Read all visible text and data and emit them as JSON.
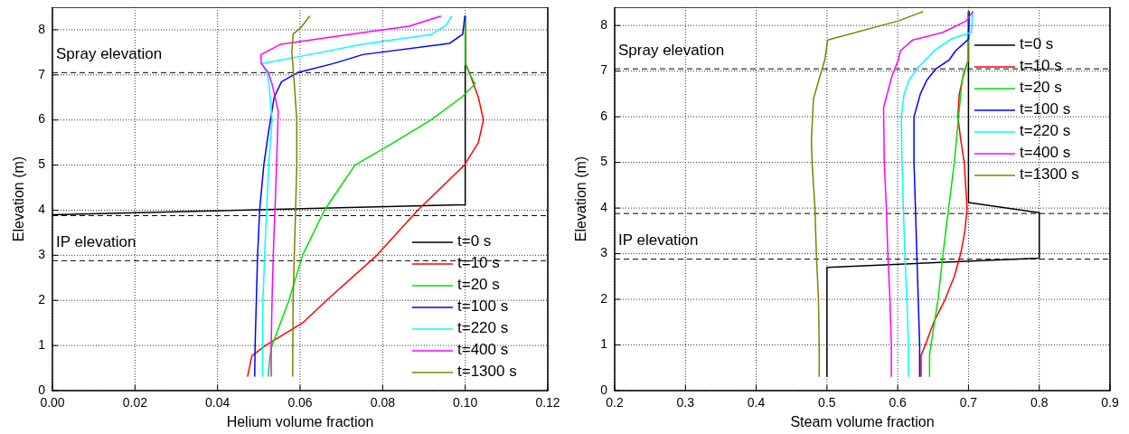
{
  "chart_data": [
    {
      "type": "line",
      "xlabel": "Helium volume fraction",
      "ylabel": "Elevation (m)",
      "xlim": [
        0,
        0.12
      ],
      "ylim": [
        0,
        8.5
      ],
      "xticks": [
        {
          "value": 0,
          "label": "0.00"
        },
        {
          "value": 0.02,
          "label": "0.02"
        },
        {
          "value": 0.04,
          "label": "0.04"
        },
        {
          "value": 0.06,
          "label": "0.06"
        },
        {
          "value": 0.08,
          "label": "0.08"
        },
        {
          "value": 0.1,
          "label": "0.10"
        },
        {
          "value": 0.12,
          "label": "0.12"
        }
      ],
      "yticks": [
        0,
        1,
        2,
        3,
        4,
        5,
        6,
        7,
        8
      ],
      "grid": true,
      "legend": "bottom right",
      "line_style": "solid",
      "ref_lines": [
        {
          "axis": "y",
          "value": 7.05,
          "line_style": "dashed",
          "color": "#000000",
          "label": "Spray elevation"
        },
        {
          "axis": "y",
          "value": 3.88,
          "line_style": "dashed",
          "color": "#000000"
        },
        {
          "axis": "y",
          "value": 2.88,
          "line_style": "dashed",
          "color": "#000000",
          "label": "IP elevation"
        }
      ],
      "series": [
        {
          "name": "t=0 s",
          "color": "#000000",
          "x": [
            0,
            0.1,
            0.1
          ],
          "values": [
            3.9,
            4.12,
            8.3
          ]
        },
        {
          "name": "t=10 s",
          "color": "#ff0000",
          "x": [
            0.0473,
            0.0483,
            0.0516,
            0.0606,
            0.0664,
            0.0786,
            0.0885,
            0.0998,
            0.1032,
            0.1044,
            0.1032,
            0.1012,
            0.1001,
            0.1
          ],
          "values": [
            0.32,
            0.77,
            1.0,
            1.5,
            2,
            3,
            4,
            5,
            5.5,
            6,
            6.5,
            7,
            7.25,
            8.3
          ]
        },
        {
          "name": "t=20 s",
          "color": "#00e000",
          "x": [
            0.0523,
            0.0527,
            0.0532,
            0.0573,
            0.0606,
            0.0659,
            0.0696,
            0.0733,
            0.0827,
            0.0917,
            0.0991,
            0.1024,
            0.1012,
            0.1,
            0.1
          ],
          "values": [
            0.32,
            0.77,
            1,
            2,
            3,
            4,
            4.5,
            5,
            5.5,
            6,
            6.5,
            6.8,
            7,
            7.25,
            8.3
          ]
        },
        {
          "name": "t=100 s",
          "color": "#0000ff",
          "x": [
            0.049,
            0.0491,
            0.0494,
            0.0497,
            0.0502,
            0.0512,
            0.0523,
            0.0537,
            0.0555,
            0.0594,
            0.068,
            0.0752,
            0.0962,
            0.0994,
            0.0999
          ],
          "values": [
            0.32,
            1,
            2,
            3,
            4,
            5,
            5.7,
            6.5,
            6.85,
            7.05,
            7.25,
            7.45,
            7.7,
            7.9,
            8.3
          ]
        },
        {
          "name": "t=220 s",
          "color": "#00ffff",
          "x": [
            0.0509,
            0.0509,
            0.051,
            0.0514,
            0.0519,
            0.0524,
            0.0532,
            0.0524,
            0.0519,
            0.0508,
            0.0623,
            0.075,
            0.0919,
            0.0954,
            0.0967
          ],
          "values": [
            0.32,
            1,
            2,
            3,
            4,
            5,
            6,
            6.85,
            7.05,
            7.25,
            7.45,
            7.68,
            7.9,
            8.1,
            8.3
          ]
        },
        {
          "name": "t=400 s",
          "color": "#ff00ff",
          "x": [
            0.053,
            0.053,
            0.0532,
            0.0535,
            0.0539,
            0.0543,
            0.0547,
            0.0532,
            0.0523,
            0.0506,
            0.0505,
            0.0553,
            0.0721,
            0.0864,
            0.094
          ],
          "values": [
            0.32,
            1,
            2,
            3,
            4,
            5,
            6.2,
            6.8,
            7.05,
            7.25,
            7.45,
            7.68,
            7.9,
            8.08,
            8.3
          ]
        },
        {
          "name": "t=1300 s",
          "color": "#808000",
          "x": [
            0.0582,
            0.0583,
            0.0589,
            0.0592,
            0.0592,
            0.0586,
            0.058,
            0.0583,
            0.0602,
            0.0623
          ],
          "values": [
            0.32,
            2,
            4,
            5,
            6,
            6.8,
            7.5,
            7.9,
            8.05,
            8.3
          ]
        }
      ]
    },
    {
      "type": "line",
      "xlabel": "Steam volume fraction",
      "ylabel": "Elevation (m)",
      "xlim": [
        0.2,
        0.9
      ],
      "ylim": [
        0,
        8.4
      ],
      "xticks": [
        0.2,
        0.3,
        0.4,
        0.5,
        0.6,
        0.7,
        0.8,
        0.9
      ],
      "yticks": [
        0,
        1,
        2,
        3,
        4,
        5,
        6,
        7,
        8
      ],
      "grid": true,
      "legend": "top right",
      "line_style": "solid",
      "ref_lines": [
        {
          "axis": "y",
          "value": 7.05,
          "line_style": "dashed",
          "color": "#000000",
          "label": "Spray elevation"
        },
        {
          "axis": "y",
          "value": 3.88,
          "line_style": "dashed",
          "color": "#000000"
        },
        {
          "axis": "y",
          "value": 2.88,
          "line_style": "dashed",
          "color": "#000000",
          "label": "IP elevation"
        }
      ],
      "series": [
        {
          "name": "t=0 s",
          "color": "#000000",
          "x": [
            0.5,
            0.5,
            0.8,
            0.8,
            0.7,
            0.7
          ],
          "values": [
            0.31,
            2.7,
            2.9,
            3.9,
            4.12,
            8.3
          ]
        },
        {
          "name": "t=10 s",
          "color": "#ff0000",
          "x": [
            0.633,
            0.633,
            0.639,
            0.651,
            0.667,
            0.68,
            0.689,
            0.695,
            0.698,
            0.694,
            0.689,
            0.685,
            0.687,
            0.694,
            0.7,
            0.7
          ],
          "values": [
            0.31,
            0.77,
            1,
            1.5,
            2,
            2.5,
            3,
            3.5,
            4,
            5,
            5.5,
            6,
            6.5,
            7,
            7.25,
            8.3
          ]
        },
        {
          "name": "t=20 s",
          "color": "#00e000",
          "x": [
            0.645,
            0.645,
            0.647,
            0.657,
            0.664,
            0.672,
            0.68,
            0.686,
            0.691,
            0.699,
            0.7
          ],
          "values": [
            0.31,
            0.77,
            1,
            2,
            3,
            4,
            5,
            6,
            6.8,
            7.2,
            8.3
          ]
        },
        {
          "name": "t=100 s",
          "color": "#0000ff",
          "x": [
            0.631,
            0.631,
            0.629,
            0.627,
            0.625,
            0.623,
            0.623,
            0.632,
            0.641,
            0.654,
            0.673,
            0.682,
            0.7,
            0.701
          ],
          "values": [
            0.31,
            1,
            2,
            3,
            4,
            5,
            6,
            6.5,
            6.8,
            7.05,
            7.25,
            7.45,
            7.7,
            8.3
          ]
        },
        {
          "name": "t=220 s",
          "color": "#00ffff",
          "x": [
            0.615,
            0.615,
            0.613,
            0.61,
            0.608,
            0.606,
            0.605,
            0.609,
            0.616,
            0.627,
            0.652,
            0.675,
            0.704,
            0.706
          ],
          "values": [
            0.31,
            1,
            2,
            3,
            4,
            5,
            6,
            6.5,
            6.8,
            7.05,
            7.45,
            7.7,
            7.85,
            8.3
          ]
        },
        {
          "name": "t=400 s",
          "color": "#ff00ff",
          "x": [
            0.591,
            0.591,
            0.589,
            0.586,
            0.584,
            0.581,
            0.58,
            0.592,
            0.601,
            0.604,
            0.621,
            0.664,
            0.697,
            0.706
          ],
          "values": [
            0.31,
            1,
            2,
            3,
            4,
            5,
            6.2,
            6.9,
            7.25,
            7.45,
            7.68,
            7.85,
            8.1,
            8.3
          ]
        },
        {
          "name": "t=1300 s",
          "color": "#808000",
          "x": [
            0.489,
            0.489,
            0.488,
            0.485,
            0.483,
            0.479,
            0.478,
            0.481,
            0.497,
            0.501,
            0.601,
            0.635
          ],
          "values": [
            0.31,
            1,
            2,
            3,
            4,
            5,
            5.5,
            6.4,
            7.25,
            7.68,
            8.1,
            8.3
          ]
        }
      ]
    }
  ]
}
